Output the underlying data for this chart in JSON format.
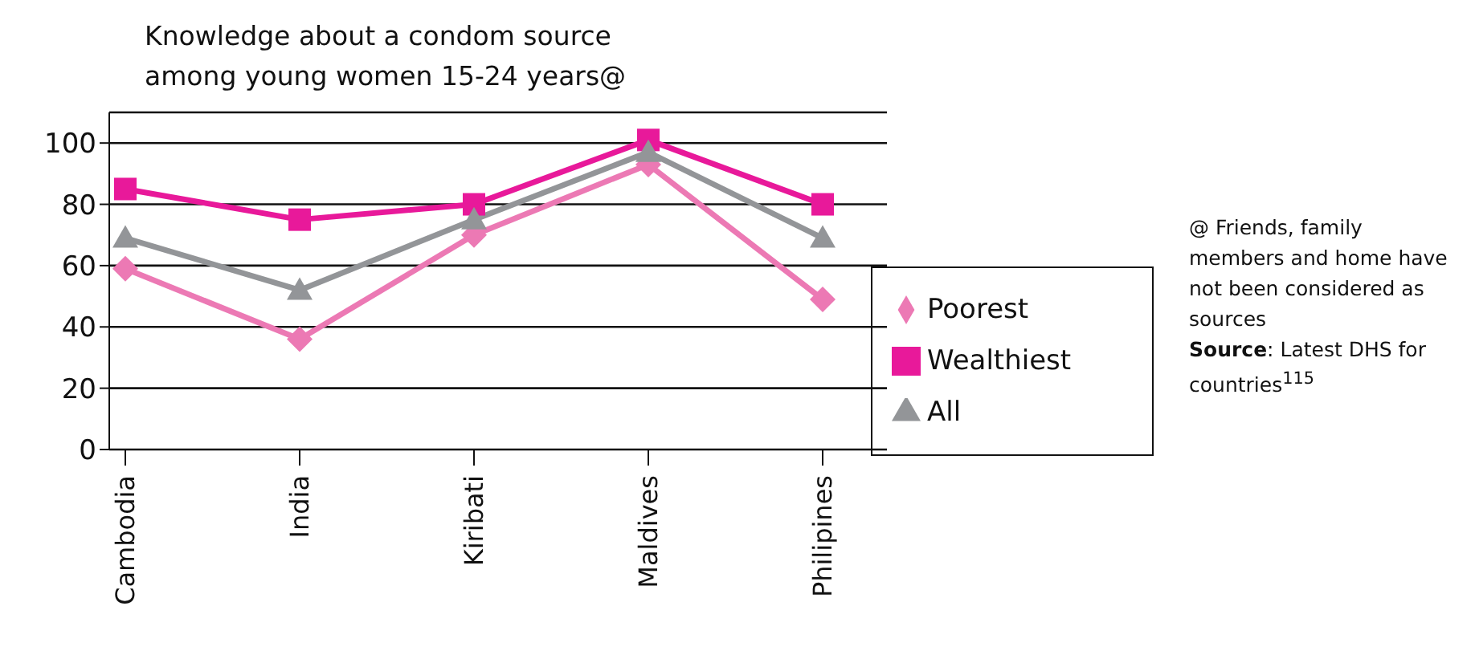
{
  "chart_data": {
    "type": "line",
    "title": "Knowledge about a condom source among young women 15-24 years@",
    "categories": [
      "Cambodia",
      "India",
      "Kiribati",
      "Maldives",
      "Philipines"
    ],
    "series": [
      {
        "name": "Poorest",
        "color": "#ec79b4",
        "marker": "diamond",
        "values": [
          59,
          36,
          70,
          93,
          49
        ]
      },
      {
        "name": "Wealthiest",
        "color": "#e8199a",
        "marker": "square",
        "values": [
          85,
          75,
          80,
          101,
          80
        ]
      },
      {
        "name": "All",
        "color": "#939598",
        "marker": "triangle",
        "values": [
          69,
          52,
          75,
          97,
          69
        ]
      }
    ],
    "ylim": [
      0,
      110
    ],
    "yticks": [
      0,
      20,
      40,
      60,
      80,
      100
    ],
    "grid": "y",
    "legend": "right",
    "annotations": [
      "@ Friends, family members and home have not been considered as sources",
      "Source: Latest DHS for countries$^{115}$"
    ]
  }
}
